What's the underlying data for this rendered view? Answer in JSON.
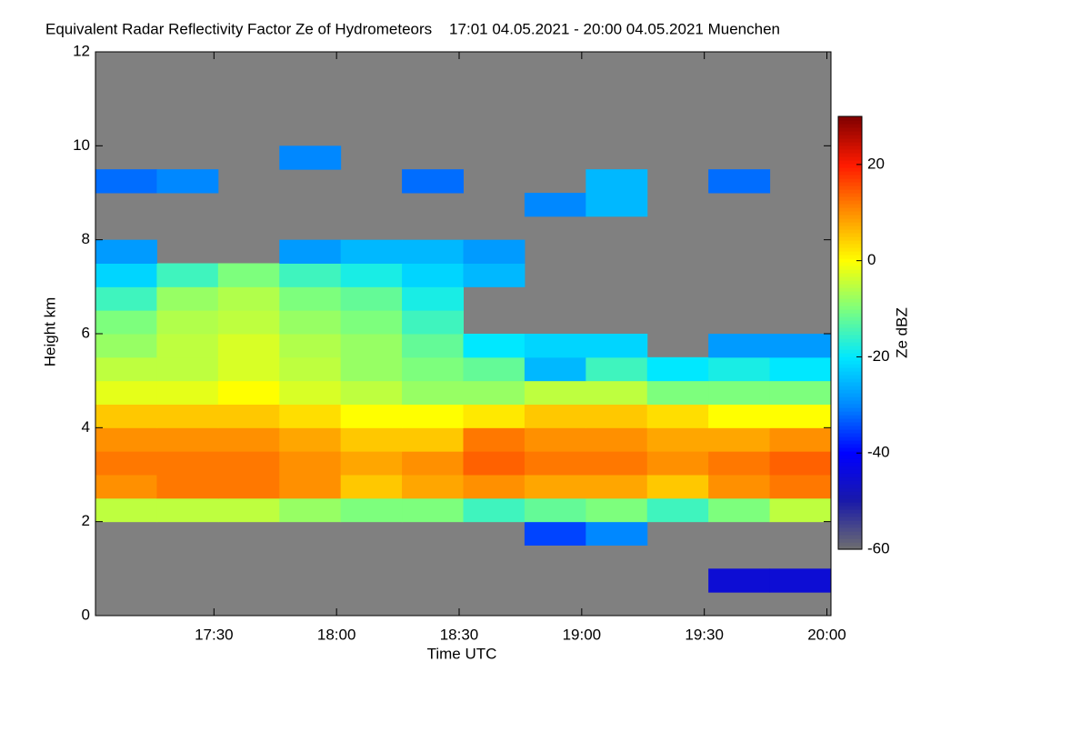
{
  "chart_data": {
    "type": "heatmap",
    "title": "Equivalent Radar Reflectivity Factor Ze of Hydrometeors    17:01 04.05.2021 - 20:00 04.05.2021 Muenchen",
    "x_label": "Time UTC",
    "y_label": "Height km",
    "colorbar_label": "Ze dBZ",
    "xlim": [
      1021,
      1201
    ],
    "xticks": [
      {
        "value": 1050,
        "label": "17:30"
      },
      {
        "value": 1080,
        "label": "18:00"
      },
      {
        "value": 1110,
        "label": "18:30"
      },
      {
        "value": 1140,
        "label": "19:00"
      },
      {
        "value": 1170,
        "label": "19:30"
      },
      {
        "value": 1200,
        "label": "20:00"
      }
    ],
    "ylim": [
      0,
      12
    ],
    "yticks": [
      0,
      2,
      4,
      6,
      8,
      10,
      12
    ],
    "xbins": [
      1021,
      1036,
      1051,
      1066,
      1081,
      1096,
      1111,
      1126,
      1141,
      1156,
      1171,
      1186,
      1201
    ],
    "ybins": [
      0,
      0.5,
      1,
      1.5,
      2,
      2.5,
      3,
      3.5,
      4,
      4.5,
      5,
      5.5,
      6,
      6.5,
      7,
      7.5,
      8,
      8.5,
      9,
      9.5,
      10,
      10.5,
      11,
      11.5,
      12
    ],
    "zlim": [
      -60,
      30
    ],
    "zticks": [
      -60,
      -40,
      -20,
      0,
      20
    ],
    "colors": [
      "#6f6f6f",
      "#1a1aa8",
      "#0000ff",
      "#0088ff",
      "#00e8ff",
      "#7dff7d",
      "#ffff00",
      "#ff9000",
      "#ff1a00",
      "#800000"
    ],
    "missing_color": "#808080",
    "values": [
      [
        null,
        null,
        null,
        null,
        null,
        null,
        null,
        null,
        null,
        null,
        null,
        null
      ],
      [
        null,
        null,
        null,
        null,
        null,
        null,
        null,
        null,
        null,
        null,
        -45,
        -45
      ],
      [
        null,
        null,
        null,
        null,
        null,
        null,
        null,
        null,
        null,
        null,
        null,
        null
      ],
      [
        null,
        null,
        null,
        null,
        null,
        null,
        null,
        -35,
        -30,
        null,
        null,
        null
      ],
      [
        -5,
        -5,
        -5,
        -8,
        -10,
        -10,
        -15,
        -12,
        -10,
        -15,
        -10,
        -5
      ],
      [
        10,
        12,
        12,
        10,
        5,
        8,
        10,
        8,
        8,
        5,
        10,
        12
      ],
      [
        12,
        12,
        12,
        10,
        8,
        10,
        14,
        12,
        12,
        10,
        12,
        14
      ],
      [
        10,
        10,
        10,
        8,
        5,
        5,
        12,
        10,
        10,
        8,
        8,
        10
      ],
      [
        5,
        5,
        5,
        3,
        0,
        0,
        2,
        5,
        5,
        3,
        0,
        0
      ],
      [
        -2,
        -2,
        0,
        -3,
        -5,
        -8,
        -8,
        -5,
        -5,
        -10,
        -10,
        -10
      ],
      [
        -5,
        -5,
        -3,
        -5,
        -8,
        -10,
        -12,
        -25,
        -15,
        -20,
        -18,
        -20
      ],
      [
        -8,
        -5,
        -3,
        -6,
        -8,
        -12,
        -20,
        -22,
        -22,
        null,
        -28,
        -28
      ],
      [
        -10,
        -6,
        -5,
        -8,
        -10,
        -15,
        null,
        null,
        null,
        null,
        null,
        null
      ],
      [
        -15,
        -8,
        -6,
        -10,
        -12,
        -18,
        null,
        null,
        null,
        null,
        null,
        null
      ],
      [
        -22,
        -15,
        -10,
        -15,
        -18,
        -22,
        -25,
        null,
        null,
        null,
        null,
        null
      ],
      [
        -28,
        null,
        null,
        -28,
        -25,
        -25,
        -28,
        null,
        null,
        null,
        null,
        null
      ],
      [
        null,
        null,
        null,
        null,
        null,
        null,
        null,
        null,
        null,
        null,
        null,
        null
      ],
      [
        null,
        null,
        null,
        null,
        null,
        null,
        null,
        -30,
        -25,
        null,
        null,
        null
      ],
      [
        -32,
        -30,
        null,
        null,
        null,
        -32,
        null,
        null,
        -25,
        null,
        -32,
        null
      ],
      [
        null,
        null,
        null,
        -30,
        null,
        null,
        null,
        null,
        null,
        null,
        null,
        null
      ],
      [
        null,
        null,
        null,
        null,
        null,
        null,
        null,
        null,
        null,
        null,
        null,
        null
      ],
      [
        null,
        null,
        null,
        null,
        null,
        null,
        null,
        null,
        null,
        null,
        null,
        null
      ],
      [
        null,
        null,
        null,
        null,
        null,
        null,
        null,
        null,
        null,
        null,
        null,
        null
      ],
      [
        null,
        null,
        null,
        null,
        null,
        null,
        null,
        null,
        null,
        null,
        null,
        null
      ]
    ]
  }
}
